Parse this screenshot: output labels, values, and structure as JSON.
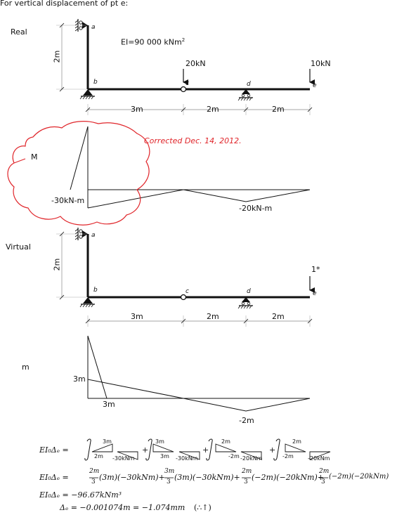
{
  "header": {
    "title": "For vertical displacement of pt e:"
  },
  "real": {
    "label": "Real",
    "height_label": "2m",
    "ei": "EI=90 000 kNm",
    "ei_sup": "2",
    "load_c": "20kN",
    "load_e": "10kN",
    "points": {
      "a": "a",
      "b": "b",
      "c": "c",
      "d": "d",
      "e": "e"
    },
    "spans": [
      "3m",
      "2m",
      "2m"
    ]
  },
  "moment": {
    "label": "M",
    "note": "Corrected Dec. 14, 2012.",
    "value_b": "-30kN-m",
    "value_d": "-20kN-m"
  },
  "virtual": {
    "label": "Virtual",
    "height_label": "2m",
    "unit_load": "1*",
    "points": {
      "a": "a",
      "b": "b",
      "c": "c",
      "d": "d",
      "e": "e"
    },
    "spans": [
      "3m",
      "2m",
      "2m"
    ]
  },
  "virtual_moment": {
    "label": "m",
    "value_top": "3m",
    "value_base": "3m",
    "value_d": "-2m"
  },
  "equations": {
    "line1_lhs": "EI₀Δₑ =",
    "line1_terms": [
      {
        "m": "3m",
        "m2": "2m",
        "M": "-30kNm"
      },
      {
        "m": "3m",
        "m2": "3m",
        "M": "-30kNm"
      },
      {
        "m": "2m",
        "m2": "-2m",
        "M": "-20kNm"
      },
      {
        "m": "2m",
        "m2": "-2m",
        "M": "-20kNm"
      }
    ],
    "line2": "EI₀Δₑ = (2m/3)(3m)(−30kNm) + (3m/3)(3m)(−30kNm) + (2m/3)(−2m)(−20kNm) + (2m/3)(−2m)(−20kNm)",
    "line2_parts": [
      "EI₀Δₑ =",
      "2m",
      "3",
      "(3m)(−30kNm)+",
      "3m",
      "3",
      "(3m)(−30kNm)+",
      "2m",
      "3",
      "(−2m)(−20kNm)+",
      "2m",
      "3",
      "(−2m)(−20kNm)"
    ],
    "line3": "EI₀Δₑ = −96.67kNm³",
    "line4": "Δₑ = −0.001074m = −1.074mm",
    "line4_note": "(∴↑)"
  }
}
